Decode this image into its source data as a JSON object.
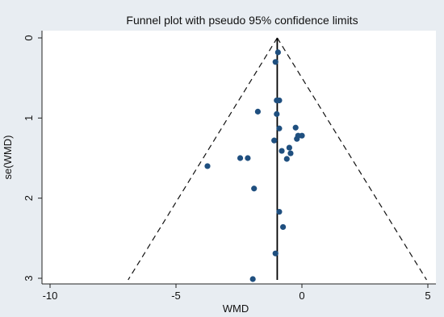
{
  "chart_data": {
    "type": "scatter",
    "title": "Funnel plot with pseudo 95% confidence limits",
    "xlabel": "WMD",
    "ylabel": "se(WMD)",
    "xlim": [
      -10.5,
      5.3
    ],
    "ylim": [
      0,
      3.05
    ],
    "y_reversed": true,
    "x_ticks": [
      -10,
      -5,
      0,
      5
    ],
    "x_tick_labels": [
      "-10",
      "-5",
      "0",
      "5"
    ],
    "y_ticks": [
      0,
      1,
      2,
      3
    ],
    "y_tick_labels": [
      "0",
      "1",
      "2",
      "3"
    ],
    "grid": false,
    "legend": "none",
    "pooled_estimate": -0.98,
    "funnel_limits": {
      "apex": [
        -0.98,
        0
      ],
      "left_base": [
        -6.9,
        3.02
      ],
      "right_base": [
        4.95,
        3.02
      ],
      "style": "dashed"
    },
    "point_color": "#1f4f7f",
    "points": [
      {
        "x": -0.95,
        "y": 0.18
      },
      {
        "x": -1.05,
        "y": 0.3
      },
      {
        "x": -1.0,
        "y": 0.78
      },
      {
        "x": -0.9,
        "y": 0.78
      },
      {
        "x": -1.75,
        "y": 0.92
      },
      {
        "x": -1.0,
        "y": 0.95
      },
      {
        "x": -0.25,
        "y": 1.12
      },
      {
        "x": -0.9,
        "y": 1.13
      },
      {
        "x": -0.15,
        "y": 1.22
      },
      {
        "x": 0.0,
        "y": 1.22
      },
      {
        "x": -0.2,
        "y": 1.26
      },
      {
        "x": -1.1,
        "y": 1.28
      },
      {
        "x": -0.5,
        "y": 1.37
      },
      {
        "x": -0.8,
        "y": 1.41
      },
      {
        "x": -0.45,
        "y": 1.44
      },
      {
        "x": -2.45,
        "y": 1.5
      },
      {
        "x": -2.15,
        "y": 1.5
      },
      {
        "x": -0.6,
        "y": 1.51
      },
      {
        "x": -3.75,
        "y": 1.6
      },
      {
        "x": -1.9,
        "y": 1.88
      },
      {
        "x": -0.9,
        "y": 2.17
      },
      {
        "x": -0.75,
        "y": 2.36
      },
      {
        "x": -1.05,
        "y": 2.69
      },
      {
        "x": -1.95,
        "y": 3.01
      }
    ]
  }
}
